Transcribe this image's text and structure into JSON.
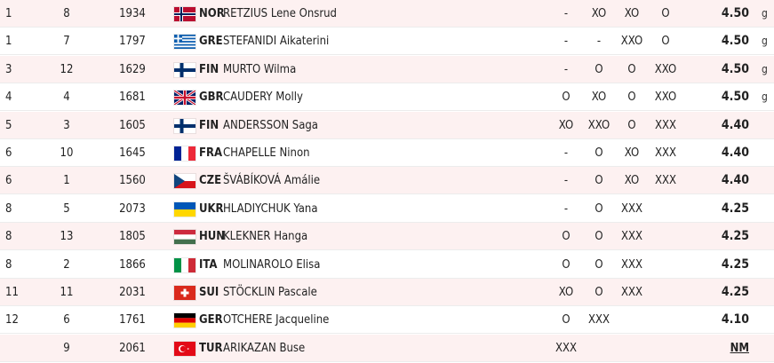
{
  "rows": [
    {
      "rank": "1",
      "order": "8",
      "bib": "1934",
      "country": "NOR",
      "name": "RETZIUS Lene Onsrud",
      "flag": "nor-flag-icon",
      "attempts": [
        "-",
        "XO",
        "XO",
        "O"
      ],
      "result": "4.50",
      "mark": "g"
    },
    {
      "rank": "1",
      "order": "7",
      "bib": "1797",
      "country": "GRE",
      "name": "STEFANIDI Aikaterini",
      "flag": "gre-flag-icon",
      "attempts": [
        "-",
        "-",
        "XXO",
        "O"
      ],
      "result": "4.50",
      "mark": "g"
    },
    {
      "rank": "3",
      "order": "12",
      "bib": "1629",
      "country": "FIN",
      "name": "MURTO Wilma",
      "flag": "fin-flag-icon",
      "attempts": [
        "-",
        "O",
        "O",
        "XXO"
      ],
      "result": "4.50",
      "mark": "g"
    },
    {
      "rank": "4",
      "order": "4",
      "bib": "1681",
      "country": "GBR",
      "name": "CAUDERY Molly",
      "flag": "gbr-flag-icon",
      "attempts": [
        "O",
        "XO",
        "O",
        "XXO"
      ],
      "result": "4.50",
      "mark": "g"
    },
    {
      "rank": "5",
      "order": "3",
      "bib": "1605",
      "country": "FIN",
      "name": "ANDERSSON Saga",
      "flag": "fin-flag-icon",
      "attempts": [
        "XO",
        "XXO",
        "O",
        "XXX"
      ],
      "result": "4.40",
      "mark": ""
    },
    {
      "rank": "6",
      "order": "10",
      "bib": "1645",
      "country": "FRA",
      "name": "CHAPELLE Ninon",
      "flag": "fra-flag-icon",
      "attempts": [
        "-",
        "O",
        "XO",
        "XXX"
      ],
      "result": "4.40",
      "mark": ""
    },
    {
      "rank": "6",
      "order": "1",
      "bib": "1560",
      "country": "CZE",
      "name": "ŠVÁBÍKOVÁ Amálie",
      "flag": "cze-flag-icon",
      "attempts": [
        "-",
        "O",
        "XO",
        "XXX"
      ],
      "result": "4.40",
      "mark": ""
    },
    {
      "rank": "8",
      "order": "5",
      "bib": "2073",
      "country": "UKR",
      "name": "HLADIYCHUK Yana",
      "flag": "ukr-flag-icon",
      "attempts": [
        "-",
        "O",
        "XXX",
        ""
      ],
      "result": "4.25",
      "mark": ""
    },
    {
      "rank": "8",
      "order": "13",
      "bib": "1805",
      "country": "HUN",
      "name": "KLEKNER Hanga",
      "flag": "hun-flag-icon",
      "attempts": [
        "O",
        "O",
        "XXX",
        ""
      ],
      "result": "4.25",
      "mark": ""
    },
    {
      "rank": "8",
      "order": "2",
      "bib": "1866",
      "country": "ITA",
      "name": "MOLINAROLO Elisa",
      "flag": "ita-flag-icon",
      "attempts": [
        "O",
        "O",
        "XXX",
        ""
      ],
      "result": "4.25",
      "mark": ""
    },
    {
      "rank": "11",
      "order": "11",
      "bib": "2031",
      "country": "SUI",
      "name": "STÖCKLIN Pascale",
      "flag": "sui-flag-icon",
      "attempts": [
        "XO",
        "O",
        "XXX",
        ""
      ],
      "result": "4.25",
      "mark": ""
    },
    {
      "rank": "12",
      "order": "6",
      "bib": "1761",
      "country": "GER",
      "name": "OTCHERE Jacqueline",
      "flag": "ger-flag-icon",
      "attempts": [
        "O",
        "XXX",
        "",
        ""
      ],
      "result": "4.10",
      "mark": ""
    },
    {
      "rank": "",
      "order": "9",
      "bib": "2061",
      "country": "TUR",
      "name": "ARIKAZAN Buse",
      "flag": "tur-flag-icon",
      "attempts": [
        "XXX",
        "",
        "",
        ""
      ],
      "result": "NM",
      "mark": ""
    }
  ],
  "colors": {
    "row_tint": "#fdf1f1",
    "row_plain": "#ffffff"
  }
}
